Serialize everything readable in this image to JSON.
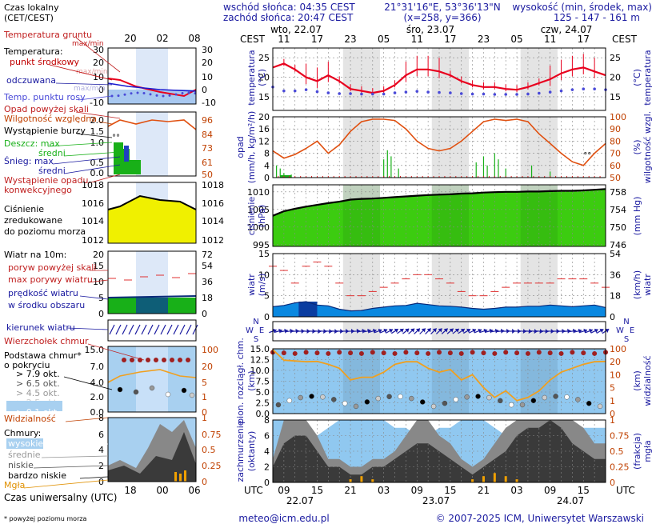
{
  "header": {
    "sunrise": "wschód słońca: 04:35 CEST",
    "sunset": "zachód słońca: 20:47 CEST",
    "coords": "21°31'16\"E, 53°36'13\"N",
    "grid": "(x=258, y=366)",
    "elev_label": "wysokość (min, środek, max)",
    "elev_values": "125 - 147 - 161 m"
  },
  "days": [
    "wto, 22.07",
    "śro, 23.07",
    "czw, 24.07"
  ],
  "cest_label": "CEST",
  "utc_label": "UTC",
  "cest_ticks": [
    "11",
    "17",
    "23",
    "05",
    "11",
    "17",
    "23",
    "05",
    "11",
    "17"
  ],
  "utc_ticks": [
    "09",
    "15",
    "21",
    "03",
    "09",
    "15",
    "21",
    "03",
    "09",
    "15"
  ],
  "utc_dates": [
    "22.07",
    "23.07",
    "24.07"
  ],
  "legend": {
    "local_time": "Czas lokalny",
    "local_time2": "(CET/CEST)",
    "top_ticks": [
      "20",
      "02",
      "08"
    ],
    "bottom_ticks": [
      "18",
      "00",
      "06"
    ],
    "soil_temp": "Temperatura gruntu",
    "soil_temp_sub": "max/min",
    "temperature": "Temperatura:",
    "temp_mid": "punkt środkowy",
    "temp_mid_sub": "max/min",
    "perceived": "odczuwana",
    "perceived_sub": "max/min",
    "dew": "Temp. punktu rosy",
    "precip_over": "Opad powyżej skali",
    "humidity": "Wilgotność względna",
    "storm": "Wystąpienie burzy",
    "rain": "Deszcz: max",
    "rain_mean": "średni",
    "snow": "Śnieg: max",
    "snow_mean": "średni",
    "conv": "Wystąpienie opadu",
    "conv2": "konwekcyjnego",
    "pressure1": "Ciśnienie",
    "pressure2": "zredukowane",
    "pressure3": "do poziomu morza",
    "wind10": "Wiatr na 10m:",
    "gust_over": "poryw powyżej skali",
    "gust": "max porywy wiatru",
    "wind_speed": "prędkość wiatru",
    "wind_speed2": "w środku obszaru",
    "wind_dir": "kierunek wiatru",
    "cb": "Wierzchołek chmur",
    "cloud_base": "Podstawa chmur*",
    "cloud_base2": "o pokryciu",
    "okt": [
      "> 7.9 okt.",
      "> 6.5 okt.",
      "> 4.5 okt.",
      "> 2.5 okt.",
      "> 0.1 okt."
    ],
    "visibility": "Widzialność",
    "clouds": "Chmury:",
    "cl_high": "wysokie",
    "cl_mid": "średnie",
    "cl_low": "niskie",
    "cl_vlow": "bardzo niskie",
    "fog": "Mgła",
    "utc_time": "Czas uniwersalny (UTC)",
    "footnote": "* powyżej poziomu morza"
  },
  "panel_labels": {
    "temp_left": "temperatura",
    "temp_unit": "(°C)",
    "precip_left": "opad",
    "precip_unit": "(mm/h, kg/m²/h)",
    "hum_right": "wilgotność wzgl.",
    "hum_unit": "(%)",
    "press_left": "ciśnienie",
    "press_unit": "(hPa)",
    "press_right": "(mm Hg)",
    "wind_left": "wiatr",
    "wind_unit": "(m/s)",
    "wind_right": "(km/h)",
    "cloud_left1": "pion. rozciągł. chm.",
    "cloud_left2": "(km)",
    "vis_right": "widzialność",
    "vis_unit": "(km)",
    "cov_left1": "zachmurzenie",
    "cov_left2": "(oktanty)",
    "fog_right": "mgła",
    "fog_unit": "(frakcja)",
    "compass_n": "N",
    "compass_w": "W",
    "compass_e": "E",
    "compass_s": "S"
  },
  "footer": {
    "email": "meteo@icm.edu.pl",
    "copyright": "© 2007-2025 ICM, Uniwersytet Warszawski"
  },
  "colors": {
    "temp": "#e8001e",
    "dew": "#4a4ad8",
    "humidity": "#e05010",
    "pressure": "#18b010",
    "wind": "#0a88e0",
    "gust": "#e03030",
    "sky": "#90c8f0",
    "rain": "#18b018"
  },
  "chart_data": [
    {
      "type": "line",
      "name": "temperature",
      "ylim": [
        11.5,
        27.5
      ],
      "yticks_left": [
        15,
        20,
        25
      ],
      "x_hours": [
        0,
        3,
        6,
        9,
        12,
        15,
        18,
        21,
        24,
        27,
        30,
        33,
        36,
        39,
        42,
        45,
        48,
        51,
        54,
        57,
        60,
        63,
        66,
        69,
        72,
        75,
        78,
        81,
        84,
        87,
        90
      ],
      "series": [
        {
          "name": "punkt środkowy",
          "values": [
            22.5,
            23.5,
            22,
            20,
            19,
            20.5,
            19,
            17,
            16.5,
            16,
            16.5,
            18,
            20.5,
            22,
            22,
            21.5,
            20.5,
            19,
            18,
            17.5,
            17.5,
            17,
            16.8,
            17.5,
            18.5,
            19.5,
            21,
            22,
            22.5,
            21.5,
            20.5
          ]
        },
        {
          "name": "Temp. punktu rosy",
          "values": [
            17.5,
            16.5,
            16.5,
            16.8,
            16.3,
            16,
            15.8,
            15.8,
            15.7,
            15.7,
            15.7,
            16,
            16.2,
            16.4,
            16.2,
            16.1,
            16,
            15.8,
            15.7,
            15.7,
            15.6,
            15.6,
            15.6,
            15.7,
            15.9,
            16.2,
            16.5,
            16.8,
            17,
            17,
            16.8
          ]
        }
      ]
    },
    {
      "type": "line",
      "name": "precipitation_humidity",
      "ylim_left": [
        0,
        20
      ],
      "yticks_left": [
        0,
        4,
        8,
        12,
        16,
        20
      ],
      "ylim_right": [
        50,
        100
      ],
      "yticks_right": [
        50,
        60,
        70,
        80,
        90,
        100
      ],
      "series": [
        {
          "name": "wilgotność",
          "values": [
            72,
            66,
            69,
            74,
            80,
            70,
            77,
            88,
            96,
            98,
            98,
            97,
            90,
            80,
            74,
            72,
            74,
            80,
            88,
            96,
            98,
            97,
            98,
            96,
            86,
            78,
            70,
            63,
            60,
            70,
            78
          ]
        }
      ]
    },
    {
      "type": "area",
      "name": "pressure",
      "ylim": [
        994.5,
        1012
      ],
      "yticks_left": [
        995,
        1000,
        1005,
        1010
      ],
      "yticks_right": [
        746,
        750,
        754,
        758
      ],
      "series": [
        {
          "name": "ciśnienie",
          "values": [
            1003.2,
            1004.5,
            1005.2,
            1005.8,
            1006.3,
            1006.8,
            1007.2,
            1007.8,
            1008,
            1008.1,
            1008.3,
            1008.5,
            1008.7,
            1008.9,
            1009.1,
            1009.2,
            1009.3,
            1009.5,
            1009.6,
            1009.8,
            1009.9,
            1010,
            1010,
            1010.1,
            1010.1,
            1010.2,
            1010.3,
            1010.3,
            1010.4,
            1010.6,
            1010.8
          ]
        }
      ]
    },
    {
      "type": "area",
      "name": "wind",
      "ylim": [
        0,
        15
      ],
      "yticks_left": [
        0,
        5,
        10,
        15
      ],
      "yticks_right": [
        0,
        18,
        36,
        54
      ],
      "series": [
        {
          "name": "prędkość wiatru",
          "values": [
            2.4,
            2.7,
            3.3,
            3.6,
            2.8,
            2.6,
            1.8,
            1.4,
            1.5,
            2.0,
            2.3,
            2.6,
            2.7,
            3.2,
            2.9,
            2.6,
            2.5,
            2.3,
            2.0,
            1.8,
            2.0,
            2.3,
            2.3,
            2.5,
            2.5,
            2.8,
            2.6,
            2.4,
            2.6,
            2.8,
            2.2
          ]
        },
        {
          "name": "max porywy wiatru",
          "values": [
            12,
            11,
            8,
            12,
            13,
            12,
            8,
            5,
            5,
            6,
            7,
            8,
            9,
            10,
            10,
            9,
            8,
            6,
            5,
            5,
            6,
            7,
            8,
            8,
            8,
            8,
            9,
            9,
            9,
            8,
            7
          ]
        }
      ]
    },
    {
      "type": "scatter",
      "name": "cloud_base_visibility",
      "ylim_left": [
        0,
        15
      ],
      "yticks_left": [
        0,
        2.5,
        5,
        7.5,
        10,
        12.5,
        15
      ],
      "ylim_right": [
        0,
        100
      ],
      "yticks_right": [
        0,
        1,
        5,
        10,
        20,
        100
      ],
      "series": [
        {
          "name": "widzialność",
          "values": [
            95,
            30,
            25,
            20,
            22,
            18,
            15,
            8,
            9,
            9,
            12,
            18,
            20,
            20,
            15,
            12,
            14,
            8,
            10,
            5,
            2,
            4,
            1,
            2,
            4,
            8,
            12,
            15,
            18,
            20,
            22
          ]
        }
      ]
    },
    {
      "type": "area",
      "name": "cloud_cover",
      "ylim_left": [
        0,
        8
      ],
      "yticks_left": [
        0,
        2,
        4,
        6,
        8
      ],
      "yticks_right": [
        0,
        0.25,
        0.5,
        0.75,
        1
      ],
      "series": [
        {
          "name": "niskie",
          "values": [
            2,
            5,
            6,
            6,
            4,
            2,
            2,
            1,
            1,
            2,
            2,
            3,
            4,
            5,
            5,
            4,
            3,
            2,
            1,
            2,
            3,
            4,
            6,
            7,
            7,
            8,
            7,
            5,
            4,
            3,
            3
          ]
        },
        {
          "name": "średnie",
          "values": [
            1,
            3,
            4,
            5,
            2,
            1,
            1,
            1,
            1,
            1,
            1,
            1,
            2,
            3,
            3,
            2,
            2,
            1,
            1,
            1,
            2,
            3,
            4,
            5,
            5,
            6,
            5,
            4,
            3,
            2,
            2
          ]
        },
        {
          "name": "wysokie",
          "values": [
            0,
            0,
            1,
            1,
            2,
            1,
            0,
            0,
            0,
            0,
            0,
            1,
            1,
            2,
            2,
            1,
            1,
            0,
            0,
            0,
            1,
            2,
            3,
            4,
            3,
            2,
            2,
            1,
            1,
            1,
            1
          ]
        },
        {
          "name": "mgła",
          "values": [
            0,
            0,
            0,
            0,
            0,
            0,
            0,
            0.05,
            0.1,
            0.05,
            0,
            0,
            0,
            0,
            0,
            0,
            0,
            0,
            0.05,
            0.1,
            0.15,
            0.1,
            0.05,
            0,
            0,
            0,
            0,
            0,
            0,
            0,
            0
          ]
        }
      ]
    }
  ]
}
